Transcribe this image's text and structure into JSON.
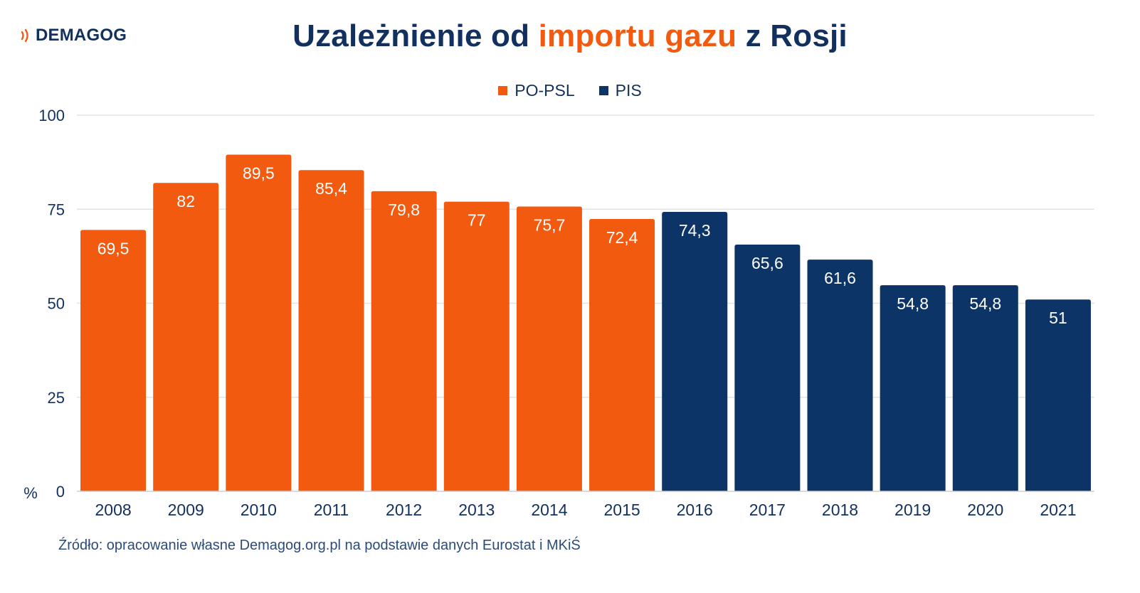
{
  "logo": {
    "text": "DEMAGOG",
    "icon": "signal-waves-icon",
    "icon_color": "#f25a0f"
  },
  "title": {
    "part1": "Uzależnienie od ",
    "accent": "importu gazu",
    "part2": " z Rosji"
  },
  "colors": {
    "orange": "#f25a0f",
    "navy": "#0d3466",
    "text": "#12305f",
    "grid": "#e3e3e3"
  },
  "chart_data": {
    "type": "bar",
    "categories": [
      "2008",
      "2009",
      "2010",
      "2011",
      "2012",
      "2013",
      "2014",
      "2015",
      "2016",
      "2017",
      "2018",
      "2019",
      "2020",
      "2021"
    ],
    "values": [
      69.5,
      82,
      89.5,
      85.4,
      79.8,
      77,
      75.7,
      72.4,
      74.3,
      65.6,
      61.6,
      54.8,
      54.8,
      51
    ],
    "value_labels": [
      "69,5",
      "82",
      "89,5",
      "85,4",
      "79,8",
      "77",
      "75,7",
      "72,4",
      "74,3",
      "65,6",
      "61,6",
      "54,8",
      "54,8",
      "51"
    ],
    "bar_series": [
      "PO-PSL",
      "PO-PSL",
      "PO-PSL",
      "PO-PSL",
      "PO-PSL",
      "PO-PSL",
      "PO-PSL",
      "PO-PSL",
      "PIS",
      "PIS",
      "PIS",
      "PIS",
      "PIS",
      "PIS"
    ],
    "series": [
      {
        "name": "PO-PSL",
        "color": "#f25a0f"
      },
      {
        "name": "PIS",
        "color": "#0d3466"
      }
    ],
    "ylabel": "%",
    "ylim": [
      0,
      100
    ],
    "yticks": [
      0,
      25,
      50,
      75,
      100
    ],
    "grid": true,
    "legend_position": "top-center"
  },
  "source": "Źródło: opracowanie własne Demagog.org.pl na podstawie danych Eurostat i MKiŚ"
}
